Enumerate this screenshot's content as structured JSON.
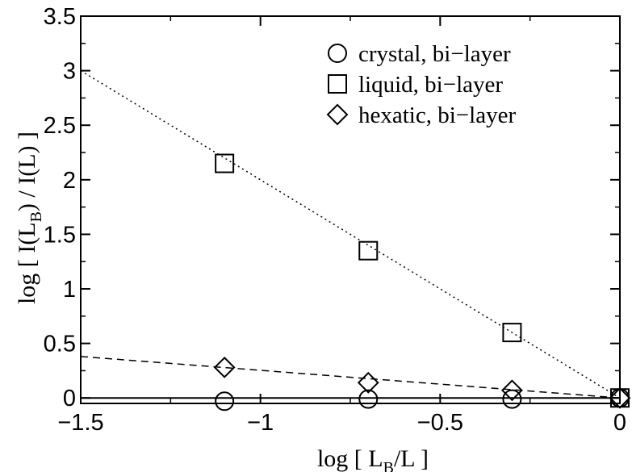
{
  "chart_data": {
    "type": "scatter",
    "xlabel": {
      "prefix": "log [ L",
      "sub": "B",
      "suffix": "/L ]"
    },
    "ylabel": {
      "prefix": "log [ I(L",
      "sub": "B",
      "suffix": ") / I(L) ]"
    },
    "xlim": [
      -1.5,
      0
    ],
    "ylim": [
      -0.05,
      3.5
    ],
    "xticks": [
      -1.5,
      -1,
      -0.5,
      0
    ],
    "xtick_labels": [
      "−1.5",
      "−1",
      "−0.5",
      "0"
    ],
    "yticks": [
      0,
      0.5,
      1,
      1.5,
      2,
      2.5,
      3,
      3.5
    ],
    "ytick_labels": [
      "0",
      "0.5",
      "1",
      "1.5",
      "2",
      "2.5",
      "3",
      "3.5"
    ],
    "legend_position": "top-right",
    "series": [
      {
        "name": "crystal, bi−layer",
        "marker": "circle",
        "x": [
          -1.1,
          -0.7,
          -0.3,
          0
        ],
        "y": [
          -0.03,
          -0.01,
          -0.01,
          0.0
        ],
        "fit": {
          "style": "solid",
          "x": [
            -1.5,
            0
          ],
          "y": [
            0.0,
            0.0
          ]
        }
      },
      {
        "name": "liquid, bi−layer",
        "marker": "square",
        "x": [
          -1.1,
          -0.7,
          -0.3,
          0
        ],
        "y": [
          2.15,
          1.35,
          0.6,
          0.0
        ],
        "fit": {
          "style": "dotted",
          "x": [
            -1.5,
            0
          ],
          "y": [
            3.0,
            0.0
          ]
        }
      },
      {
        "name": "hexatic, bi−layer",
        "marker": "diamond",
        "x": [
          -1.1,
          -0.7,
          -0.3,
          0
        ],
        "y": [
          0.28,
          0.14,
          0.07,
          0.0
        ],
        "fit": {
          "style": "dashed",
          "x": [
            -1.5,
            0
          ],
          "y": [
            0.38,
            0.0
          ]
        }
      }
    ]
  }
}
